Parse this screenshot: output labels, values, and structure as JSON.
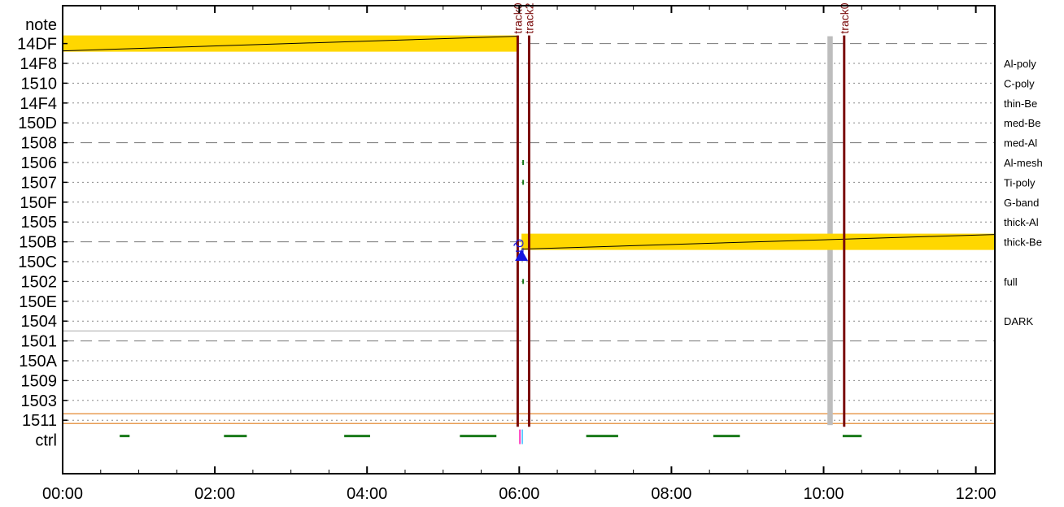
{
  "chart_data": {
    "type": "timeline",
    "x_ticks": [
      "00:00",
      "02:00",
      "04:00",
      "06:00",
      "08:00",
      "10:00",
      "12:00"
    ],
    "x_range_hours": [
      0,
      12.25
    ],
    "rows": [
      "note",
      "14DF",
      "14F8",
      "1510",
      "14F4",
      "150D",
      "1508",
      "1506",
      "1507",
      "150F",
      "1505",
      "150B",
      "150C",
      "1502",
      "150E",
      "1504",
      "1501",
      "150A",
      "1509",
      "1503",
      "1511",
      "ctrl"
    ],
    "dashed_rows": [
      "14DF",
      "1508",
      "150B",
      "1501"
    ],
    "filter_labels": [
      {
        "row": "14F8",
        "text": "Al-poly"
      },
      {
        "row": "1510",
        "text": "C-poly"
      },
      {
        "row": "14F4",
        "text": "thin-Be"
      },
      {
        "row": "150D",
        "text": "med-Be"
      },
      {
        "row": "1508",
        "text": "med-Al"
      },
      {
        "row": "1506",
        "text": "Al-mesh"
      },
      {
        "row": "1507",
        "text": "Ti-poly"
      },
      {
        "row": "150F",
        "text": "G-band"
      },
      {
        "row": "1505",
        "text": "thick-Al"
      },
      {
        "row": "150B",
        "text": "thick-Be"
      },
      {
        "row": "1502",
        "text": "full"
      },
      {
        "row": "1504",
        "text": "DARK"
      }
    ],
    "yellow_bars": [
      {
        "row": "14DF",
        "start": 0.0,
        "end": 5.98
      },
      {
        "row": "150B",
        "start": 6.03,
        "end": 12.25
      }
    ],
    "track_markers": [
      {
        "label": "track0",
        "time": 5.98
      },
      {
        "label": "track2",
        "time": 6.13
      },
      {
        "label": "track0",
        "time": 10.27
      }
    ],
    "gray_band": {
      "start": 10.05,
      "end": 10.12
    },
    "qt_marker": {
      "label": "QT",
      "time": 6.03,
      "row": "150C"
    },
    "ctrl_segments": [
      [
        0.75,
        0.88
      ],
      [
        2.12,
        2.42
      ],
      [
        3.7,
        4.04
      ],
      [
        5.22,
        5.7
      ],
      [
        6.88,
        7.3
      ],
      [
        8.55,
        8.9
      ],
      [
        10.25,
        10.5
      ]
    ],
    "colors": {
      "yellow": "#ffd700",
      "track": "#7a0a0a",
      "ctrl": "#1a7a1a",
      "qt": "#1515e0",
      "orange": "#e07b1a",
      "gray": "#bdbdbd"
    }
  }
}
